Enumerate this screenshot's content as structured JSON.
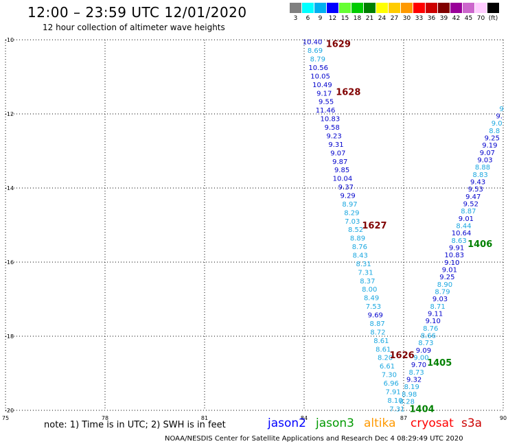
{
  "header": {
    "title": "12:00 – 23:59 UTC 12/01/2020",
    "subtitle": "12 hour collection of altimeter wave heights"
  },
  "legend": {
    "swatches": [
      {
        "label": "3",
        "color": "#808080"
      },
      {
        "label": "6",
        "color": "#00ffff"
      },
      {
        "label": "9",
        "color": "#00b0f0"
      },
      {
        "label": "12",
        "color": "#0000ff"
      },
      {
        "label": "15",
        "color": "#66ff33"
      },
      {
        "label": "18",
        "color": "#00cc00"
      },
      {
        "label": "21",
        "color": "#008000"
      },
      {
        "label": "24",
        "color": "#ffff00"
      },
      {
        "label": "27",
        "color": "#ffcc00"
      },
      {
        "label": "30",
        "color": "#ff9900"
      },
      {
        "label": "33",
        "color": "#ff0000"
      },
      {
        "label": "36",
        "color": "#cc0000"
      },
      {
        "label": "39",
        "color": "#800000"
      },
      {
        "label": "42",
        "color": "#990099"
      },
      {
        "label": "45",
        "color": "#cc66cc"
      },
      {
        "label": "70",
        "color": "#ffccff"
      },
      {
        "label": "(ft)",
        "color": "#000000"
      }
    ]
  },
  "map": {
    "x_ticks": [
      "75",
      "78",
      "81",
      "84",
      "87",
      "90"
    ],
    "y_ticks": [
      "-10",
      "-12",
      "-14",
      "-16",
      "-18",
      "-20"
    ],
    "left_track": [
      {
        "v": "10.40",
        "c": "#0000cc",
        "dx": 0
      },
      {
        "v": "8.69",
        "c": "#1aa7e0",
        "dx": 1
      },
      {
        "v": "8.79",
        "c": "#1aa7e0",
        "dx": 2
      },
      {
        "v": "10.56",
        "c": "#0000cc",
        "dx": 0
      },
      {
        "v": "10.05",
        "c": "#0000cc",
        "dx": 0
      },
      {
        "v": "10.49",
        "c": "#0000cc",
        "dx": 0
      },
      {
        "v": "9.17",
        "c": "#0000cc",
        "dx": 0
      },
      {
        "v": "9.55",
        "c": "#0000cc",
        "dx": 0
      },
      {
        "v": "11.46",
        "c": "#0000cc",
        "dx": -4
      },
      {
        "v": "10.83",
        "c": "#0000cc",
        "dx": 0
      },
      {
        "v": "9.58",
        "c": "#0000cc",
        "dx": 0
      },
      {
        "v": "9.23",
        "c": "#0000cc",
        "dx": 0
      },
      {
        "v": "9.31",
        "c": "#0000cc",
        "dx": 0
      },
      {
        "v": "9.07",
        "c": "#0000cc",
        "dx": 0
      },
      {
        "v": "9.87",
        "c": "#0000cc",
        "dx": 0
      },
      {
        "v": "9.85",
        "c": "#0000cc",
        "dx": 0
      },
      {
        "v": "10.04",
        "c": "#0000cc",
        "dx": -2
      },
      {
        "v": "9.37",
        "c": "#0000cc",
        "dx": 0
      },
      {
        "v": "9.29",
        "c": "#0000cc",
        "dx": 0
      },
      {
        "v": "8.97",
        "c": "#1aa7e0",
        "dx": 0
      },
      {
        "v": "8.29",
        "c": "#1aa7e0",
        "dx": 0
      },
      {
        "v": "7.03",
        "c": "#1aa7e0",
        "dx": -2
      },
      {
        "v": "8.52",
        "c": "#1aa7e0",
        "dx": 0
      },
      {
        "v": "8.89",
        "c": "#1aa7e0",
        "dx": 0
      },
      {
        "v": "8.76",
        "c": "#1aa7e0",
        "dx": 0
      },
      {
        "v": "8.43",
        "c": "#1aa7e0",
        "dx": -2
      },
      {
        "v": "8.31",
        "c": "#1aa7e0",
        "dx": 0
      },
      {
        "v": "7.31",
        "c": "#1aa7e0",
        "dx": 0
      },
      {
        "v": "8.37",
        "c": "#1aa7e0",
        "dx": 0
      },
      {
        "v": "8.00",
        "c": "#1aa7e0",
        "dx": 0
      },
      {
        "v": "8.49",
        "c": "#1aa7e0",
        "dx": 0
      },
      {
        "v": "7.53",
        "c": "#1aa7e0",
        "dx": 0
      },
      {
        "v": "9.69",
        "c": "#0000cc",
        "dx": 0
      },
      {
        "v": "8.87",
        "c": "#1aa7e0",
        "dx": 0
      },
      {
        "v": "8.72",
        "c": "#1aa7e0",
        "dx": -2
      },
      {
        "v": "8.61",
        "c": "#1aa7e0",
        "dx": 0
      },
      {
        "v": "8.61",
        "c": "#1aa7e0",
        "dx": 0
      },
      {
        "v": "8.20",
        "c": "#1aa7e0",
        "dx": 0
      },
      {
        "v": "6.61",
        "c": "#1aa7e0",
        "dx": 0
      },
      {
        "v": "7.30",
        "c": "#1aa7e0",
        "dx": 0
      },
      {
        "v": "6.96",
        "c": "#1aa7e0",
        "dx": 0
      },
      {
        "v": "7.91",
        "c": "#1aa7e0",
        "dx": 0
      },
      {
        "v": "8.10",
        "c": "#1aa7e0",
        "dx": 0
      },
      {
        "v": "7.31",
        "c": "#1aa7e0",
        "dx": 0
      }
    ],
    "right_track": [
      {
        "v": "9",
        "c": "#1aa7e0"
      },
      {
        "v": "9.",
        "c": "#0000cc"
      },
      {
        "v": "9.0",
        "c": "#1aa7e0"
      },
      {
        "v": "8.8",
        "c": "#1aa7e0"
      },
      {
        "v": "9.25",
        "c": "#0000cc"
      },
      {
        "v": "9.19",
        "c": "#0000cc"
      },
      {
        "v": "9.07",
        "c": "#0000cc"
      },
      {
        "v": "9.03",
        "c": "#0000cc"
      },
      {
        "v": "8.88",
        "c": "#1aa7e0"
      },
      {
        "v": "8.83",
        "c": "#1aa7e0"
      },
      {
        "v": "9.43",
        "c": "#0000cc"
      },
      {
        "v": "9.53",
        "c": "#0000cc"
      },
      {
        "v": "9.47",
        "c": "#0000cc"
      },
      {
        "v": "9.52",
        "c": "#0000cc"
      },
      {
        "v": "8.87",
        "c": "#1aa7e0"
      },
      {
        "v": "9.01",
        "c": "#0000cc"
      },
      {
        "v": "8.44",
        "c": "#1aa7e0"
      },
      {
        "v": "10.64",
        "c": "#0000cc"
      },
      {
        "v": "8.63",
        "c": "#1aa7e0"
      },
      {
        "v": "9.91",
        "c": "#0000cc"
      },
      {
        "v": "10.83",
        "c": "#0000cc"
      },
      {
        "v": "9.10",
        "c": "#0000cc"
      },
      {
        "v": "9.01",
        "c": "#0000cc"
      },
      {
        "v": "9.25",
        "c": "#0000cc"
      },
      {
        "v": "8.90",
        "c": "#1aa7e0"
      },
      {
        "v": "8.79",
        "c": "#1aa7e0"
      },
      {
        "v": "9.03",
        "c": "#0000cc"
      },
      {
        "v": "8.71",
        "c": "#1aa7e0"
      },
      {
        "v": "9.11",
        "c": "#0000cc"
      },
      {
        "v": "9.10",
        "c": "#0000cc"
      },
      {
        "v": "8.76",
        "c": "#1aa7e0"
      },
      {
        "v": "8.66",
        "c": "#1aa7e0"
      },
      {
        "v": "8.73",
        "c": "#1aa7e0"
      },
      {
        "v": "9.09",
        "c": "#0000cc"
      },
      {
        "v": "9.00",
        "c": "#1aa7e0"
      },
      {
        "v": "9.70",
        "c": "#0000cc"
      },
      {
        "v": "8.73",
        "c": "#1aa7e0"
      },
      {
        "v": "9.32",
        "c": "#0000cc"
      },
      {
        "v": "8.19",
        "c": "#1aa7e0"
      },
      {
        "v": "8.98",
        "c": "#1aa7e0"
      },
      {
        "v": "8.28",
        "c": "#1aa7e0"
      }
    ],
    "time_labels": [
      {
        "t": "1629",
        "c": "#800000",
        "lon": 85.03,
        "lat": -10.1
      },
      {
        "t": "1628",
        "c": "#800000",
        "lon": 85.33,
        "lat": -11.4
      },
      {
        "t": "1627",
        "c": "#800000",
        "lon": 86.12,
        "lat": -15.0
      },
      {
        "t": "1626",
        "c": "#800000",
        "lon": 86.95,
        "lat": -18.5
      },
      {
        "t": "1406",
        "c": "#008000",
        "lon": 89.3,
        "lat": -15.5
      },
      {
        "t": "1405",
        "c": "#008000",
        "lon": 88.08,
        "lat": -18.7
      },
      {
        "t": "1404",
        "c": "#008000",
        "lon": 87.55,
        "lat": -19.95
      }
    ]
  },
  "footer": {
    "note": "note:  1) Time is in UTC;  2) SWH is in feet",
    "satellites": [
      {
        "name": "jason2",
        "color": "#0000ff"
      },
      {
        "name": "jason3",
        "color": "#009900"
      },
      {
        "name": "altika",
        "color": "#ff9900"
      },
      {
        "name": "cryosat",
        "color": "#ff0000"
      },
      {
        "name": "s3a",
        "color": "#cc0000"
      }
    ],
    "credit": "NOAA/NESDIS Center for Satellite Applications and Research    Dec  4 08:29:49 UTC 2020"
  }
}
